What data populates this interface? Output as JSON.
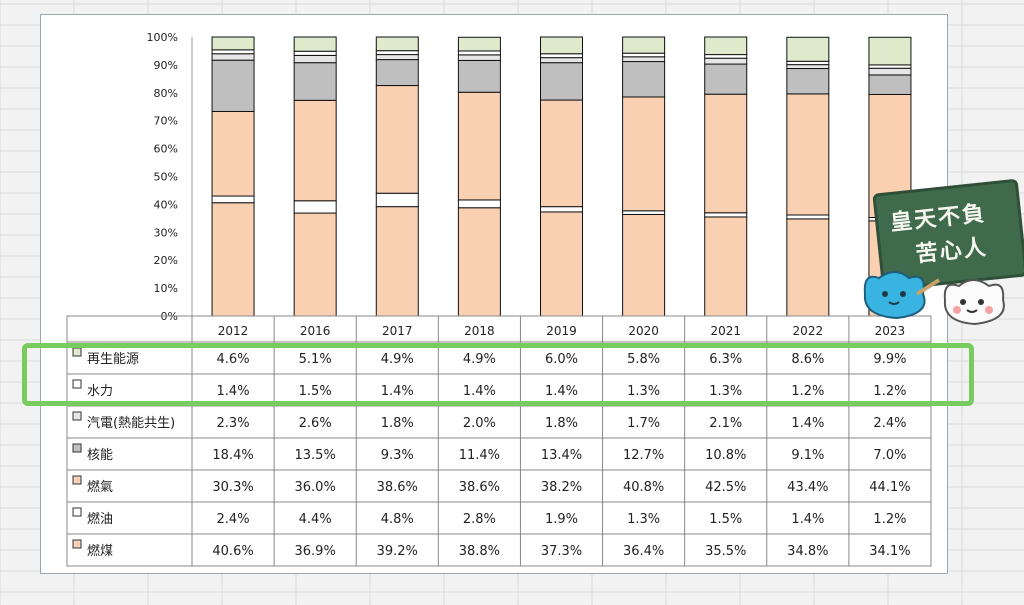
{
  "colors": {
    "再生能源": "#dfe9cc",
    "水力": "#ffffff",
    "汽電(熱能共生)": "#e6e6e6",
    "核能": "#bfbfbf",
    "燃氣": "#fad0b3",
    "燃油": "#ffffff",
    "燃煤": "#fad0b3",
    "highlight": "#78cc5f",
    "sticker_board": "#3f6b4c"
  },
  "sticker": {
    "line1": "皇天不負",
    "line2": "苦心人",
    "icons": [
      "blue-cat-icon",
      "white-cat-icon",
      "chalkboard-icon"
    ]
  },
  "chart_data": {
    "type": "bar",
    "stacked": true,
    "categories": [
      "2012",
      "2016",
      "2017",
      "2018",
      "2019",
      "2020",
      "2021",
      "2022",
      "2023"
    ],
    "y_ticks": [
      "0%",
      "10%",
      "20%",
      "30%",
      "40%",
      "50%",
      "60%",
      "70%",
      "80%",
      "90%",
      "100%"
    ],
    "ylim": [
      0,
      100
    ],
    "legend_placement": "table-below",
    "series": [
      {
        "name": "再生能源",
        "labels": [
          "4.6%",
          "5.1%",
          "4.9%",
          "4.9%",
          "6.0%",
          "5.8%",
          "6.3%",
          "8.6%",
          "9.9%"
        ],
        "values": [
          4.6,
          5.1,
          4.9,
          4.9,
          6.0,
          5.8,
          6.3,
          8.6,
          9.9
        ]
      },
      {
        "name": "水力",
        "labels": [
          "1.4%",
          "1.5%",
          "1.4%",
          "1.4%",
          "1.4%",
          "1.3%",
          "1.3%",
          "1.2%",
          "1.2%"
        ],
        "values": [
          1.4,
          1.5,
          1.4,
          1.4,
          1.4,
          1.3,
          1.3,
          1.2,
          1.2
        ]
      },
      {
        "name": "汽電(熱能共生)",
        "labels": [
          "2.3%",
          "2.6%",
          "1.8%",
          "2.0%",
          "1.8%",
          "1.7%",
          "2.1%",
          "1.4%",
          "2.4%"
        ],
        "values": [
          2.3,
          2.6,
          1.8,
          2.0,
          1.8,
          1.7,
          2.1,
          1.4,
          2.4
        ]
      },
      {
        "name": "核能",
        "labels": [
          "18.4%",
          "13.5%",
          "9.3%",
          "11.4%",
          "13.4%",
          "12.7%",
          "10.8%",
          "9.1%",
          "7.0%"
        ],
        "values": [
          18.4,
          13.5,
          9.3,
          11.4,
          13.4,
          12.7,
          10.8,
          9.1,
          7.0
        ]
      },
      {
        "name": "燃氣",
        "labels": [
          "30.3%",
          "36.0%",
          "38.6%",
          "38.6%",
          "38.2%",
          "40.8%",
          "42.5%",
          "43.4%",
          "44.1%"
        ],
        "values": [
          30.3,
          36.0,
          38.6,
          38.6,
          38.2,
          40.8,
          42.5,
          43.4,
          44.1
        ]
      },
      {
        "name": "燃油",
        "labels": [
          "2.4%",
          "4.4%",
          "4.8%",
          "2.8%",
          "1.9%",
          "1.3%",
          "1.5%",
          "1.4%",
          "1.2%"
        ],
        "values": [
          2.4,
          4.4,
          4.8,
          2.8,
          1.9,
          1.3,
          1.5,
          1.4,
          1.2
        ]
      },
      {
        "name": "燃煤",
        "labels": [
          "40.6%",
          "36.9%",
          "39.2%",
          "38.8%",
          "37.3%",
          "36.4%",
          "35.5%",
          "34.8%",
          "34.1%"
        ],
        "values": [
          40.6,
          36.9,
          39.2,
          38.8,
          37.3,
          36.4,
          35.5,
          34.8,
          34.1
        ]
      }
    ]
  }
}
